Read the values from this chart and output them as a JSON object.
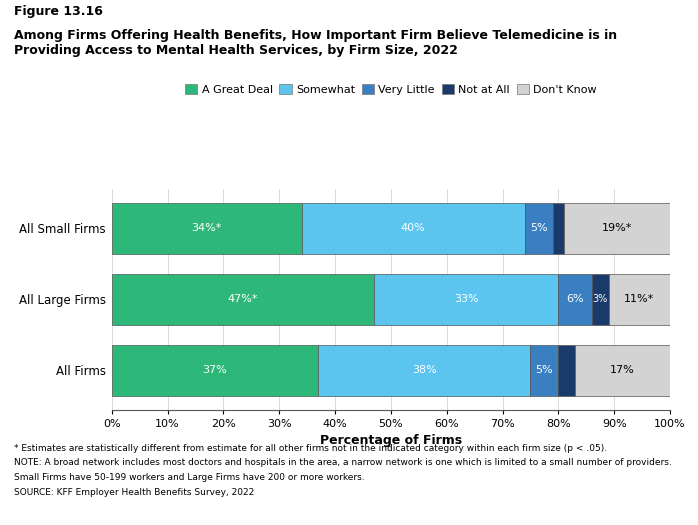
{
  "title_line1": "Figure 13.16",
  "title_line2": "Among Firms Offering Health Benefits, How Important Firm Believe Telemedicine is in\nProviding Access to Mental Health Services, by Firm Size, 2022",
  "categories": [
    "All Small Firms",
    "All Large Firms",
    "All Firms"
  ],
  "segments": [
    "A Great Deal",
    "Somewhat",
    "Very Little",
    "Not at All",
    "Don't Know"
  ],
  "colors": [
    "#2db87a",
    "#5bc5f0",
    "#3a7fc1",
    "#1a3a6b",
    "#d3d3d3"
  ],
  "border_color": "#555555",
  "values": [
    [
      34,
      40,
      5,
      2,
      19
    ],
    [
      47,
      33,
      6,
      3,
      11
    ],
    [
      37,
      38,
      5,
      3,
      17
    ]
  ],
  "labels": [
    [
      "34%*",
      "40%",
      "5%",
      "",
      "19%*"
    ],
    [
      "47%*",
      "33%",
      "6%",
      "3%",
      "11%*"
    ],
    [
      "37%",
      "38%",
      "5%",
      "",
      "17%"
    ]
  ],
  "label_colors": [
    [
      "white",
      "white",
      "white",
      "",
      "black"
    ],
    [
      "white",
      "white",
      "white",
      "white",
      "black"
    ],
    [
      "white",
      "white",
      "white",
      "",
      "black"
    ]
  ],
  "xlabel": "Percentage of Firms",
  "footnote1": "* Estimates are statistically different from estimate for all other firms not in the indicated category within each firm size (p < .05).",
  "footnote2": "NOTE: A broad network includes most doctors and hospitals in the area, a narrow network is one which is limited to a small number of providers.",
  "footnote3": "Small Firms have 50-199 workers and Large Firms have 200 or more workers.",
  "footnote4": "SOURCE: KFF Employer Health Benefits Survey, 2022"
}
